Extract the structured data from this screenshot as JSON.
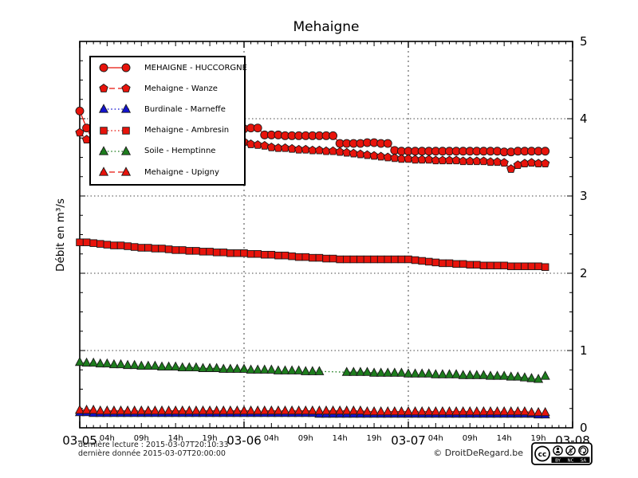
{
  "chart_data": {
    "type": "line",
    "title": "Mehaigne",
    "ylabel": "Débit en m³/s",
    "legend_position": "upper-left",
    "marker_edge_color": "#1a1a1a",
    "axes": {
      "x": {
        "start": "03-05 00:00",
        "step_hours": 1,
        "span_hours": 72,
        "day_hours": [
          0,
          24,
          48,
          72
        ],
        "day_labels": [
          "03-05",
          "03-06",
          "03-07",
          "03-08"
        ],
        "hour_offsets": [
          4,
          9,
          14,
          19
        ],
        "hour_labels": [
          "04h",
          "09h",
          "14h",
          "19h"
        ],
        "grid_hours": [
          24,
          48
        ]
      },
      "y": {
        "min": 0,
        "max": 5,
        "ticks": [
          0,
          1,
          2,
          3,
          4,
          5
        ],
        "grid": [
          1,
          2,
          3,
          4
        ],
        "minor_step": 0.25
      }
    },
    "series": [
      {
        "name": "MEHAIGNE - HUCCORGNE",
        "marker": "circle",
        "line": "solid",
        "color": "#e8130b",
        "values": [
          4.1,
          3.88,
          3.7,
          3.72,
          3.74,
          3.75,
          3.76,
          3.76,
          3.75,
          3.74,
          3.74,
          3.73,
          3.73,
          3.72,
          3.72,
          3.72,
          3.71,
          3.71,
          3.71,
          3.7,
          3.7,
          3.7,
          3.7,
          3.71,
          3.87,
          3.88,
          3.88,
          3.79,
          3.79,
          3.79,
          3.78,
          3.78,
          3.78,
          3.78,
          3.78,
          3.78,
          3.78,
          3.78,
          3.68,
          3.68,
          3.68,
          3.68,
          3.69,
          3.69,
          3.68,
          3.68,
          3.59,
          3.58,
          3.58,
          3.58,
          3.58,
          3.58,
          3.58,
          3.58,
          3.58,
          3.58,
          3.58,
          3.58,
          3.58,
          3.58,
          3.58,
          3.58,
          3.57,
          3.57,
          3.58,
          3.58,
          3.58,
          3.58,
          3.58
        ]
      },
      {
        "name": "Mehaigne - Wanze",
        "marker": "pentagon",
        "line": "dashed",
        "color": "#e8130b",
        "values": [
          3.82,
          3.73,
          3.7,
          3.71,
          3.71,
          3.71,
          3.71,
          3.71,
          3.71,
          3.71,
          3.71,
          3.71,
          3.71,
          3.71,
          3.71,
          3.71,
          3.71,
          3.71,
          3.71,
          3.71,
          3.71,
          3.71,
          3.72,
          3.73,
          3.7,
          3.67,
          3.66,
          3.65,
          3.63,
          3.62,
          3.62,
          3.61,
          3.6,
          3.6,
          3.59,
          3.59,
          3.58,
          3.58,
          3.57,
          3.56,
          3.55,
          3.54,
          3.53,
          3.52,
          3.51,
          3.5,
          3.49,
          3.48,
          3.48,
          3.47,
          3.47,
          3.47,
          3.46,
          3.46,
          3.46,
          3.46,
          3.45,
          3.45,
          3.45,
          3.45,
          3.44,
          3.44,
          3.43,
          3.35,
          3.4,
          3.42,
          3.43,
          3.42,
          3.42
        ]
      },
      {
        "name": "Burdinale - Marneffe",
        "marker": "triangle",
        "line": "dotted",
        "color": "#1212cf",
        "values": [
          0.2,
          0.2,
          0.19,
          0.19,
          0.19,
          0.19,
          0.19,
          0.19,
          0.19,
          0.19,
          0.19,
          0.19,
          0.19,
          0.19,
          0.19,
          0.19,
          0.19,
          0.19,
          0.19,
          0.19,
          0.19,
          0.19,
          0.19,
          0.19,
          0.19,
          0.19,
          0.19,
          0.19,
          0.19,
          0.19,
          0.19,
          0.19,
          0.19,
          0.19,
          0.19,
          0.18,
          0.18,
          0.18,
          0.18,
          0.18,
          0.18,
          0.18,
          0.18,
          0.18,
          0.18,
          0.18,
          0.18,
          0.18,
          0.18,
          0.18,
          0.18,
          0.18,
          0.18,
          0.18,
          0.18,
          0.18,
          0.18,
          0.18,
          0.18,
          0.18,
          0.18,
          0.18,
          0.18,
          0.18,
          0.18,
          0.18,
          0.18,
          0.17,
          0.17
        ]
      },
      {
        "name": "Mehaigne - Ambresin",
        "marker": "square",
        "line": "dotted",
        "color": "#e8130b",
        "values": [
          2.4,
          2.4,
          2.39,
          2.38,
          2.37,
          2.36,
          2.36,
          2.35,
          2.34,
          2.33,
          2.33,
          2.32,
          2.32,
          2.31,
          2.3,
          2.3,
          2.29,
          2.29,
          2.28,
          2.28,
          2.27,
          2.27,
          2.26,
          2.26,
          2.26,
          2.25,
          2.25,
          2.24,
          2.24,
          2.23,
          2.23,
          2.22,
          2.21,
          2.21,
          2.2,
          2.2,
          2.19,
          2.19,
          2.18,
          2.18,
          2.18,
          2.18,
          2.18,
          2.18,
          2.18,
          2.18,
          2.18,
          2.18,
          2.18,
          2.17,
          2.16,
          2.15,
          2.14,
          2.13,
          2.13,
          2.12,
          2.12,
          2.11,
          2.11,
          2.1,
          2.1,
          2.1,
          2.1,
          2.09,
          2.09,
          2.09,
          2.09,
          2.09,
          2.08
        ]
      },
      {
        "name": "Soile - Hemptinne",
        "marker": "triangle",
        "line": "dotted",
        "color": "#1d7d1d",
        "values": [
          0.85,
          0.84,
          0.84,
          0.83,
          0.83,
          0.82,
          0.82,
          0.81,
          0.81,
          0.8,
          0.8,
          0.8,
          0.79,
          0.79,
          0.79,
          0.78,
          0.78,
          0.78,
          0.77,
          0.77,
          0.77,
          0.76,
          0.76,
          0.76,
          0.76,
          0.75,
          0.75,
          0.75,
          0.75,
          0.74,
          0.74,
          0.74,
          0.74,
          0.73,
          0.73,
          0.73,
          null,
          null,
          null,
          0.72,
          0.72,
          0.72,
          0.72,
          0.71,
          0.71,
          0.71,
          0.71,
          0.71,
          0.7,
          0.7,
          0.7,
          0.7,
          0.69,
          0.69,
          0.69,
          0.69,
          0.68,
          0.68,
          0.68,
          0.68,
          0.67,
          0.67,
          0.67,
          0.66,
          0.66,
          0.65,
          0.64,
          0.63,
          0.67
        ]
      },
      {
        "name": "Mehaigne - Upigny",
        "marker": "triangle",
        "line": "dashed",
        "color": "#e8130b",
        "values": [
          0.23,
          0.23,
          0.23,
          0.22,
          0.22,
          0.22,
          0.22,
          0.22,
          0.22,
          0.22,
          0.22,
          0.22,
          0.22,
          0.22,
          0.22,
          0.22,
          0.22,
          0.22,
          0.22,
          0.22,
          0.22,
          0.22,
          0.22,
          0.22,
          0.22,
          0.22,
          0.22,
          0.22,
          0.22,
          0.22,
          0.22,
          0.22,
          0.22,
          0.22,
          0.22,
          0.22,
          0.22,
          0.22,
          0.22,
          0.22,
          0.22,
          0.22,
          0.21,
          0.21,
          0.21,
          0.21,
          0.21,
          0.21,
          0.21,
          0.21,
          0.21,
          0.21,
          0.21,
          0.21,
          0.21,
          0.21,
          0.21,
          0.21,
          0.21,
          0.21,
          0.21,
          0.21,
          0.21,
          0.21,
          0.21,
          0.21,
          0.2,
          0.2,
          0.2
        ]
      }
    ]
  },
  "footer": {
    "last_reading": "dernière lecture : 2015-03-07T20:10:33",
    "last_data": "dernière donnée  2015-03-07T20:00:00",
    "copyright": "© DroitDeRegard.be",
    "license": {
      "cc_label": "cc",
      "nc_glyph": "$",
      "labels": [
        "BY",
        "NC",
        "SA"
      ]
    }
  }
}
